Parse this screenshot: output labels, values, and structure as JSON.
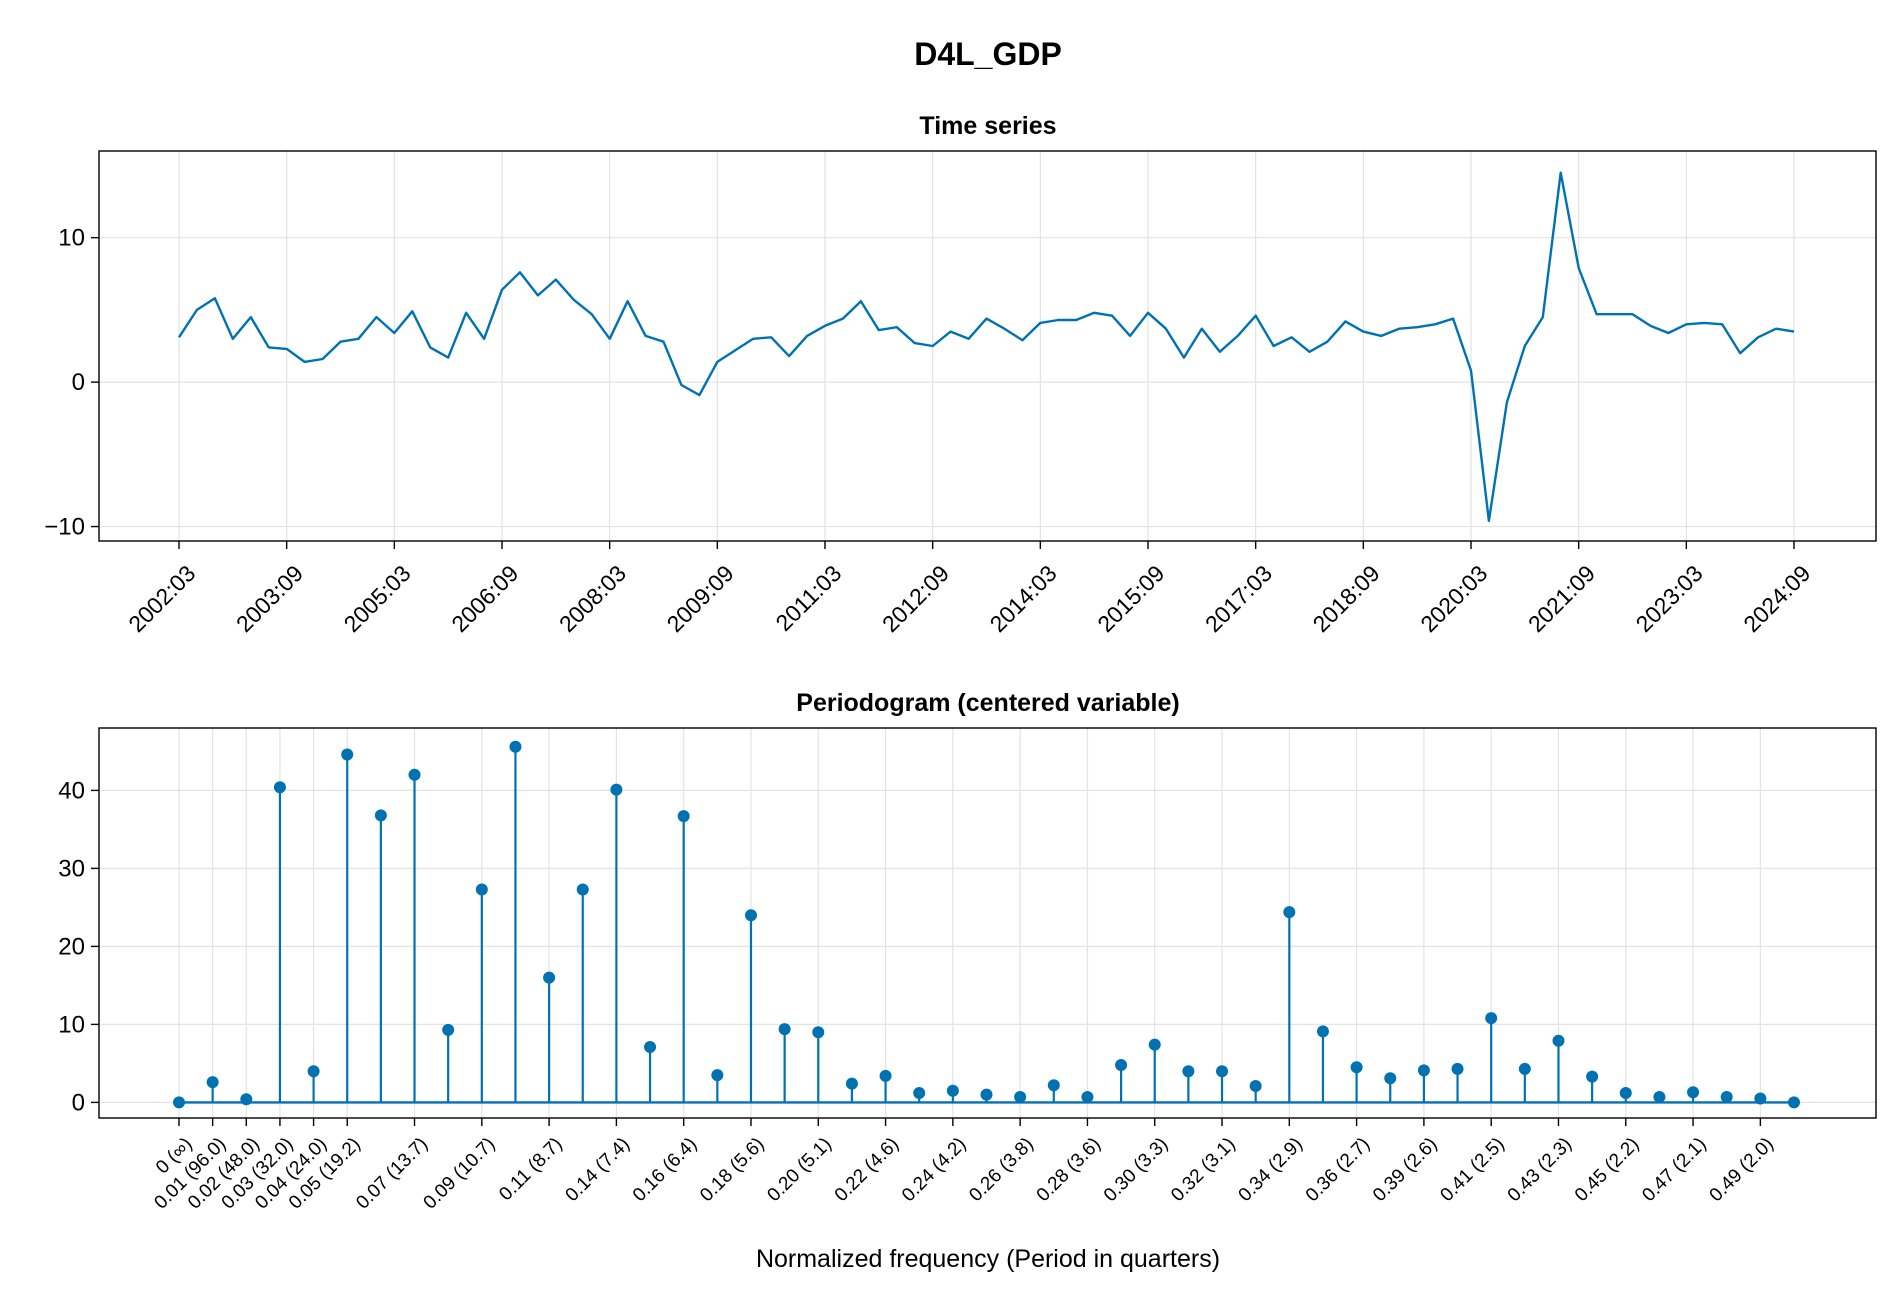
{
  "figure": {
    "title": "D4L_GDP"
  },
  "chart_data": [
    {
      "type": "line",
      "title": "Time series",
      "xlabel": "",
      "ylabel": "",
      "color": "#0072B2",
      "grid": true,
      "x_start": "2002:03",
      "x_frequency": "quarterly",
      "x_ticks": [
        "2002:03",
        "2003:09",
        "2005:03",
        "2006:09",
        "2008:03",
        "2009:09",
        "2011:03",
        "2012:09",
        "2014:03",
        "2015:09",
        "2017:03",
        "2018:09",
        "2020:03",
        "2021:09",
        "2023:03",
        "2024:09"
      ],
      "y_ticks": [
        -10,
        0,
        10
      ],
      "ylim": [
        -11,
        16
      ],
      "x": [
        "2002:03",
        "2002:06",
        "2002:09",
        "2002:12",
        "2003:03",
        "2003:06",
        "2003:09",
        "2003:12",
        "2004:03",
        "2004:06",
        "2004:09",
        "2004:12",
        "2005:03",
        "2005:06",
        "2005:09",
        "2005:12",
        "2006:03",
        "2006:06",
        "2006:09",
        "2006:12",
        "2007:03",
        "2007:06",
        "2007:09",
        "2007:12",
        "2008:03",
        "2008:06",
        "2008:09",
        "2008:12",
        "2009:03",
        "2009:06",
        "2009:09",
        "2009:12",
        "2010:03",
        "2010:06",
        "2010:09",
        "2010:12",
        "2011:03",
        "2011:06",
        "2011:09",
        "2011:12",
        "2012:03",
        "2012:06",
        "2012:09",
        "2012:12",
        "2013:03",
        "2013:06",
        "2013:09",
        "2013:12",
        "2014:03",
        "2014:06",
        "2014:09",
        "2014:12",
        "2015:03",
        "2015:06",
        "2015:09",
        "2015:12",
        "2016:03",
        "2016:06",
        "2016:09",
        "2016:12",
        "2017:03",
        "2017:06",
        "2017:09",
        "2017:12",
        "2018:03",
        "2018:06",
        "2018:09",
        "2018:12",
        "2019:03",
        "2019:06",
        "2019:09",
        "2019:12",
        "2020:03",
        "2020:06",
        "2020:09",
        "2020:12",
        "2021:03",
        "2021:06",
        "2021:09",
        "2021:12",
        "2022:03",
        "2022:06",
        "2022:09",
        "2022:12",
        "2023:03",
        "2023:06",
        "2023:09",
        "2023:12",
        "2024:03",
        "2024:06",
        "2024:09"
      ],
      "values": [
        3.1,
        5.0,
        5.8,
        3.0,
        4.5,
        2.4,
        2.3,
        1.4,
        1.6,
        2.8,
        3.0,
        4.5,
        3.4,
        4.9,
        2.4,
        1.7,
        4.8,
        3.0,
        6.4,
        7.6,
        6.0,
        7.1,
        5.7,
        4.7,
        3.0,
        5.6,
        3.2,
        2.8,
        -0.2,
        -0.9,
        1.4,
        2.2,
        3.0,
        3.1,
        1.8,
        3.2,
        3.9,
        4.4,
        5.6,
        3.6,
        3.8,
        2.7,
        2.5,
        3.5,
        3.0,
        4.4,
        3.7,
        2.9,
        4.1,
        4.3,
        4.3,
        4.8,
        4.6,
        3.2,
        4.8,
        3.7,
        1.7,
        3.7,
        2.1,
        3.2,
        4.6,
        2.5,
        3.1,
        2.1,
        2.8,
        4.2,
        3.5,
        3.2,
        3.7,
        3.8,
        4.0,
        4.4,
        0.8,
        -9.6,
        -1.4,
        2.5,
        4.5,
        14.5,
        7.9,
        4.7,
        4.7,
        4.7,
        3.9,
        3.4,
        4.0,
        4.1,
        4.0,
        2.0,
        3.1,
        3.7,
        3.5
      ]
    },
    {
      "type": "stem",
      "title": "Periodogram (centered variable)",
      "xlabel": "Normalized frequency (Period in quarters)",
      "ylabel": "",
      "color": "#0072B2",
      "grid": true,
      "y_ticks": [
        0,
        10,
        20,
        30,
        40
      ],
      "ylim": [
        -2,
        48
      ],
      "x_tick_labels": [
        "0 (∞)",
        "0.01 (96.0)",
        "0.02 (48.0)",
        "0.03 (32.0)",
        "0.04 (24.0)",
        "0.05 (19.2)",
        "0.07 (13.7)",
        "0.09 (10.7)",
        "0.11 (8.7)",
        "0.14 (7.4)",
        "0.16 (6.4)",
        "0.18 (5.6)",
        "0.20 (5.1)",
        "0.22 (4.6)",
        "0.24 (4.2)",
        "0.26 (3.8)",
        "0.28 (3.6)",
        "0.30 (3.3)",
        "0.32 (3.1)",
        "0.34 (2.9)",
        "0.36 (2.7)",
        "0.39 (2.6)",
        "0.41 (2.5)",
        "0.43 (2.3)",
        "0.45 (2.2)",
        "0.47 (2.1)",
        "0.49 (2.0)"
      ],
      "x_tick_index": [
        0,
        1,
        2,
        3,
        4,
        5,
        7,
        9,
        11,
        13,
        15,
        17,
        19,
        21,
        23,
        25,
        27,
        29,
        31,
        33,
        35,
        37,
        39,
        41,
        43,
        45,
        47
      ],
      "values": [
        0.0,
        2.6,
        0.4,
        40.4,
        4.0,
        44.6,
        36.8,
        42.0,
        9.3,
        27.3,
        45.6,
        16.0,
        27.3,
        40.1,
        7.1,
        36.7,
        3.5,
        24.0,
        9.4,
        9.0,
        2.4,
        3.4,
        1.2,
        1.5,
        1.0,
        0.7,
        2.2,
        0.7,
        4.8,
        7.4,
        4.0,
        4.0,
        2.1,
        24.4,
        9.1,
        4.5,
        3.1,
        4.1,
        4.3,
        10.8,
        4.3,
        7.9,
        3.3,
        1.2,
        0.7,
        1.3,
        0.7,
        0.5,
        0.0
      ]
    }
  ]
}
